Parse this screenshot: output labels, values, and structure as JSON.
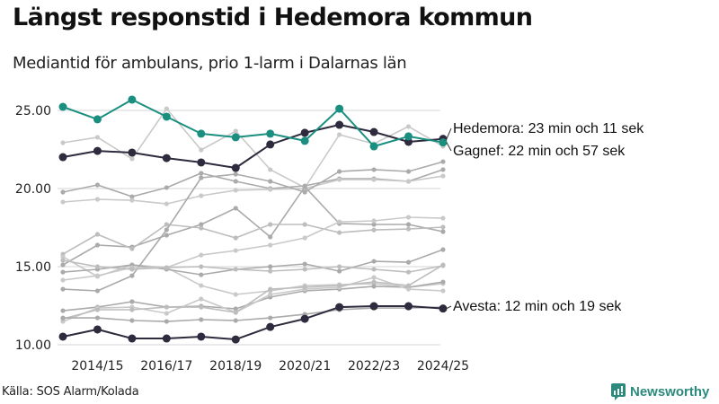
{
  "title": "Längst responstid i Hedemora kommun",
  "subtitle": "Mediantid för ambulans, prio 1-larm i Dalarnas län",
  "source": "Källa: SOS Alarm/Kolada",
  "brand": {
    "name": "Newsworthy",
    "icon": "newsworthy-logo-icon",
    "color": "#2a8a7b"
  },
  "chart_data": {
    "type": "line",
    "title": "Längst responstid i Hedemora kommun",
    "subtitle": "Mediantid för ambulans, prio 1-larm i Dalarnas län",
    "xlabel": "",
    "ylabel": "",
    "ylim": [
      10,
      26
    ],
    "yticks": [
      "10.00",
      "15.00",
      "20.00",
      "25.00"
    ],
    "ytick_values": [
      10,
      15,
      20,
      25
    ],
    "grid": "horizontal",
    "x": [
      "2013/14",
      "2014/15",
      "2015/16",
      "2016/17",
      "2017/18",
      "2018/19",
      "2019/20",
      "2020/21",
      "2021/22",
      "2022/23",
      "2023/24",
      "2024/25"
    ],
    "xtick_labels": [
      "2014/15",
      "2016/17",
      "2018/19",
      "2020/21",
      "2022/23",
      "2024/25"
    ],
    "highlighted_series": [
      {
        "name": "Hedemora",
        "color": "#2d2b3d",
        "annotation": "Hedemora: 23 min och 11 sek",
        "values": [
          22.01,
          22.41,
          22.3,
          21.95,
          21.67,
          21.32,
          22.82,
          23.57,
          24.08,
          23.62,
          22.99,
          23.18
        ]
      },
      {
        "name": "Gagnef",
        "color": "#1a8f80",
        "annotation": "Gagnef: 22 min och 57 sek",
        "values": [
          25.23,
          24.43,
          25.69,
          24.6,
          23.51,
          23.28,
          23.51,
          23.05,
          25.11,
          22.7,
          23.34,
          22.95
        ]
      },
      {
        "name": "Avesta",
        "color": "#2d2b3d",
        "annotation": "Avesta: 12 min och 19 sek",
        "values": [
          10.52,
          10.98,
          10.4,
          10.4,
          10.52,
          10.34,
          11.14,
          11.66,
          12.41,
          12.47,
          12.47,
          12.32
        ]
      }
    ],
    "background_series": [
      {
        "color": "#c9c9c9",
        "values": [
          22.93,
          23.28,
          21.9,
          25.11,
          22.47,
          23.68,
          21.21,
          20.06,
          23.45,
          22.87,
          23.97,
          22.7
        ]
      },
      {
        "color": "#aaaaaa",
        "values": [
          19.77,
          20.23,
          19.48,
          20.06,
          20.98,
          20.46,
          20.0,
          20.17,
          20.63,
          20.63,
          20.46,
          21.21
        ]
      },
      {
        "color": "#c9c9c9",
        "values": [
          19.14,
          19.31,
          19.25,
          19.02,
          19.54,
          19.89,
          19.94,
          20.0,
          20.57,
          20.57,
          20.46,
          20.8
        ]
      },
      {
        "color": "#aaaaaa",
        "values": [
          15.11,
          16.38,
          16.26,
          17.01,
          17.7,
          18.74,
          16.9,
          20.11,
          17.76,
          17.7,
          17.7,
          17.24
        ]
      },
      {
        "color": "#bdbdbd",
        "values": [
          15.8,
          17.07,
          16.15,
          17.7,
          17.47,
          16.84,
          17.7,
          17.7,
          17.18,
          17.35,
          17.41,
          17.53
        ]
      },
      {
        "color": "#c9c9c9",
        "values": [
          15.63,
          14.37,
          15.11,
          14.94,
          13.79,
          13.22,
          13.45,
          13.79,
          13.85,
          13.91,
          13.68,
          13.91
        ]
      },
      {
        "color": "#aaaaaa",
        "values": [
          13.56,
          13.45,
          14.42,
          17.36,
          20.69,
          20.92,
          20.46,
          19.77,
          21.09,
          21.21,
          21.09,
          21.72
        ]
      },
      {
        "color": "#aaaaaa",
        "values": [
          14.65,
          14.83,
          15.11,
          14.83,
          14.48,
          14.83,
          15.0,
          15.17,
          14.71,
          15.34,
          15.28,
          16.09
        ]
      },
      {
        "color": "#c9c9c9",
        "values": [
          14.14,
          14.42,
          14.94,
          14.94,
          15.74,
          16.03,
          16.38,
          16.84,
          17.87,
          17.93,
          18.16,
          18.1
        ]
      },
      {
        "color": "#bdbdbd",
        "values": [
          15.4,
          15.0,
          14.83,
          14.94,
          15.0,
          14.83,
          14.71,
          14.83,
          15.0,
          14.83,
          14.65,
          15.06
        ]
      },
      {
        "color": "#aaaaaa",
        "values": [
          12.18,
          12.41,
          12.76,
          12.41,
          12.47,
          12.3,
          13.05,
          13.45,
          13.56,
          13.74,
          13.68,
          14.02
        ]
      },
      {
        "color": "#c9c9c9",
        "values": [
          11.49,
          12.35,
          12.41,
          12.01,
          12.93,
          12.07,
          13.22,
          13.56,
          13.68,
          14.31,
          13.56,
          13.45
        ]
      },
      {
        "color": "#bdbdbd",
        "values": [
          11.66,
          12.24,
          12.24,
          12.41,
          12.41,
          12.07,
          13.56,
          13.68,
          13.79,
          14.02,
          13.79,
          15.11
        ]
      },
      {
        "color": "#aaaaaa",
        "values": [
          11.72,
          11.72,
          11.55,
          11.49,
          11.61,
          11.55,
          11.72,
          11.95,
          12.24,
          12.35,
          12.35,
          12.41
        ]
      }
    ]
  }
}
